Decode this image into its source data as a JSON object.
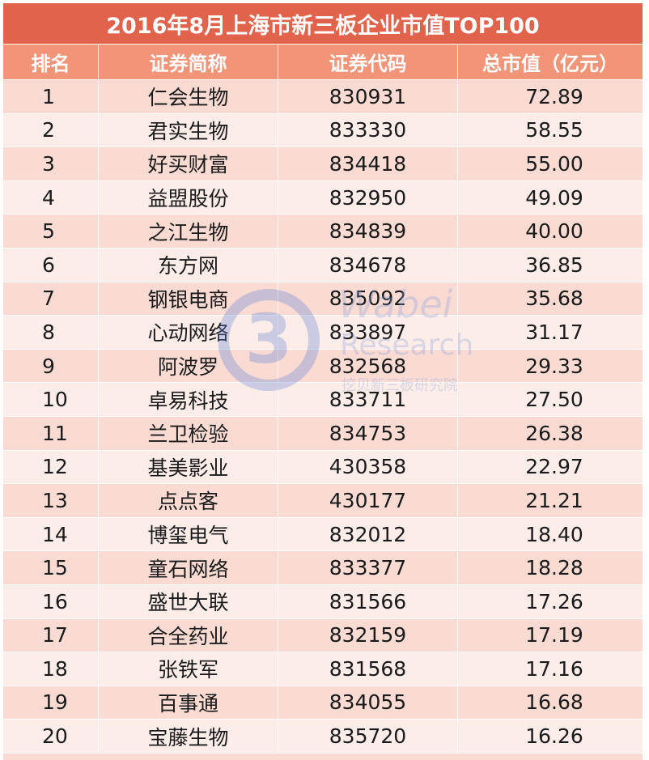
{
  "title": "2016年8月上海市新三板企业市值TOP100",
  "columns": [
    "排名",
    "证券简称",
    "证券代码",
    "总市值（亿元）"
  ],
  "rows": [
    {
      "rank": "1",
      "name": "仁会生物",
      "code": "830931",
      "value": "72.89"
    },
    {
      "rank": "2",
      "name": "君实生物",
      "code": "833330",
      "value": "58.55"
    },
    {
      "rank": "3",
      "name": "好买财富",
      "code": "834418",
      "value": "55.00"
    },
    {
      "rank": "4",
      "name": "益盟股份",
      "code": "832950",
      "value": "49.09"
    },
    {
      "rank": "5",
      "name": "之江生物",
      "code": "834839",
      "value": "40.00"
    },
    {
      "rank": "6",
      "name": "东方网",
      "code": "834678",
      "value": "36.85"
    },
    {
      "rank": "7",
      "name": "钢银电商",
      "code": "835092",
      "value": "35.68"
    },
    {
      "rank": "8",
      "name": "心动网络",
      "code": "833897",
      "value": "31.17"
    },
    {
      "rank": "9",
      "name": "阿波罗",
      "code": "832568",
      "value": "29.33"
    },
    {
      "rank": "10",
      "name": "卓易科技",
      "code": "833711",
      "value": "27.50"
    },
    {
      "rank": "11",
      "name": "兰卫检验",
      "code": "834753",
      "value": "26.38"
    },
    {
      "rank": "12",
      "name": "基美影业",
      "code": "430358",
      "value": "22.97"
    },
    {
      "rank": "13",
      "name": "点点客",
      "code": "430177",
      "value": "21.21"
    },
    {
      "rank": "14",
      "name": "博玺电气",
      "code": "832012",
      "value": "18.40"
    },
    {
      "rank": "15",
      "name": "童石网络",
      "code": "833377",
      "value": "18.28"
    },
    {
      "rank": "16",
      "name": "盛世大联",
      "code": "831566",
      "value": "17.26"
    },
    {
      "rank": "17",
      "name": "合全药业",
      "code": "832159",
      "value": "17.19"
    },
    {
      "rank": "18",
      "name": "张铁军",
      "code": "831568",
      "value": "17.16"
    },
    {
      "rank": "19",
      "name": "百事通",
      "code": "834055",
      "value": "16.68"
    },
    {
      "rank": "20",
      "name": "宝藤生物",
      "code": "835720",
      "value": "16.26"
    }
  ],
  "watermark": {
    "logo_text": "3",
    "brand": "Wabei",
    "sub": "Research",
    "cn": "挖贝新三板研究院"
  },
  "colors": {
    "title_bg": "#e2634b",
    "header_bg": "#f19478",
    "row_odd": "#f9dbd3",
    "row_even": "#fcede9"
  }
}
